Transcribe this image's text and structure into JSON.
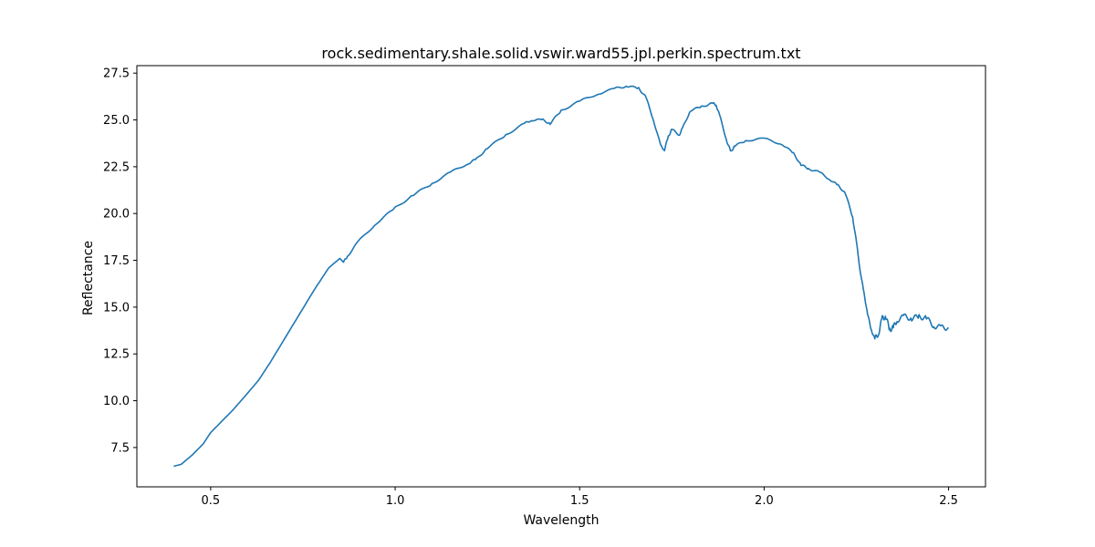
{
  "chart_data": {
    "type": "line",
    "title": "rock.sedimentary.shale.solid.vswir.ward55.jpl.perkin.spectrum.txt",
    "xlabel": "Wavelength",
    "ylabel": "Reflectance",
    "xlim": [
      0.3,
      2.6
    ],
    "ylim": [
      5.4,
      27.9
    ],
    "xticks": [
      0.5,
      1.0,
      1.5,
      2.0,
      2.5
    ],
    "xtick_labels": [
      "0.5",
      "1.0",
      "1.5",
      "2.0",
      "2.5"
    ],
    "yticks": [
      7.5,
      10.0,
      12.5,
      15.0,
      17.5,
      20.0,
      22.5,
      25.0,
      27.5
    ],
    "ytick_labels": [
      "7.5",
      "10.0",
      "12.5",
      "15.0",
      "17.5",
      "20.0",
      "22.5",
      "25.0",
      "27.5"
    ],
    "grid": false,
    "legend": "none",
    "series": [
      {
        "color": "#1f77b4",
        "x": [
          0.4,
          0.42,
          0.45,
          0.48,
          0.5,
          0.53,
          0.56,
          0.6,
          0.63,
          0.66,
          0.7,
          0.74,
          0.78,
          0.82,
          0.85,
          0.86,
          0.87,
          0.9,
          0.95,
          1.0,
          1.05,
          1.1,
          1.15,
          1.2,
          1.22,
          1.25,
          1.3,
          1.35,
          1.37,
          1.4,
          1.42,
          1.45,
          1.5,
          1.55,
          1.6,
          1.63,
          1.66,
          1.68,
          1.7,
          1.72,
          1.73,
          1.74,
          1.75,
          1.77,
          1.78,
          1.8,
          1.83,
          1.86,
          1.87,
          1.88,
          1.9,
          1.91,
          1.92,
          1.95,
          2.0,
          2.05,
          2.08,
          2.1,
          2.12,
          2.15,
          2.18,
          2.2,
          2.22,
          2.24,
          2.25,
          2.26,
          2.27,
          2.28,
          2.29,
          2.3,
          2.31,
          2.32,
          2.33,
          2.34,
          2.35,
          2.36,
          2.38,
          2.4,
          2.42,
          2.44,
          2.46,
          2.48,
          2.5
        ],
        "y": [
          6.5,
          6.6,
          7.1,
          7.7,
          8.3,
          8.9,
          9.5,
          10.4,
          11.1,
          12.0,
          13.3,
          14.6,
          15.9,
          17.1,
          17.6,
          17.4,
          17.7,
          18.5,
          19.5,
          20.3,
          21.0,
          21.6,
          22.2,
          22.7,
          22.9,
          23.5,
          24.2,
          24.8,
          25.0,
          25.0,
          24.8,
          25.5,
          26.0,
          26.4,
          26.7,
          26.8,
          26.7,
          26.2,
          25.0,
          23.6,
          23.4,
          24.1,
          24.5,
          24.2,
          24.6,
          25.5,
          25.7,
          25.9,
          25.8,
          25.2,
          23.8,
          23.3,
          23.6,
          23.9,
          24.0,
          23.7,
          23.2,
          22.6,
          22.4,
          22.2,
          21.8,
          21.5,
          21.1,
          19.8,
          18.5,
          17.0,
          15.8,
          14.7,
          13.8,
          13.3,
          13.6,
          14.4,
          14.5,
          13.8,
          13.9,
          14.3,
          14.5,
          14.4,
          14.5,
          14.4,
          14.0,
          13.9,
          13.9
        ]
      }
    ]
  }
}
